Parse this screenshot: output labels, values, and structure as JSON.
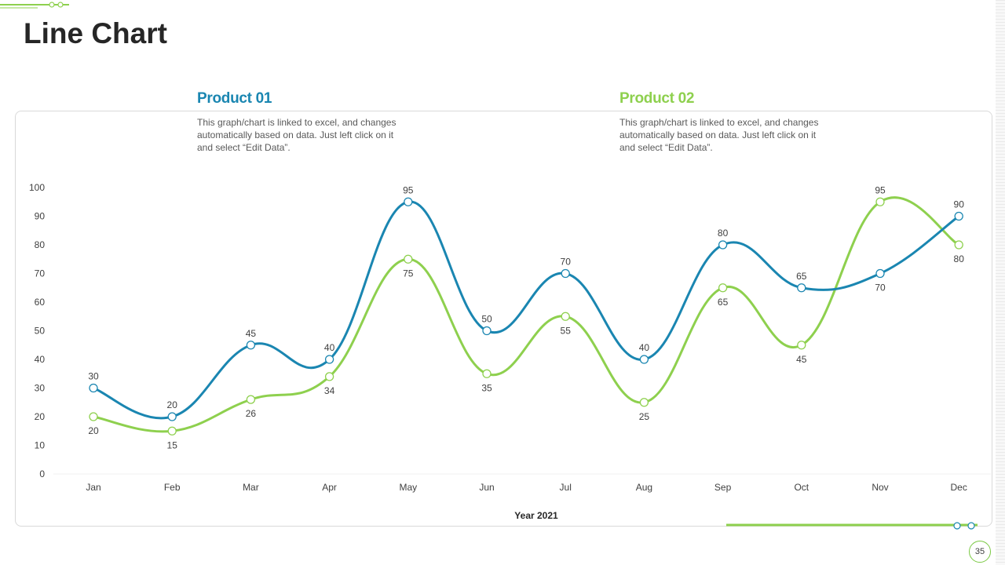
{
  "slide": {
    "title": "Line Chart",
    "page_number": "35"
  },
  "legend": [
    {
      "name": "Product 01",
      "color": "#1a86b1",
      "description": "This graph/chart is linked to excel, and changes automatically based on data. Just left click on it and select “Edit Data”."
    },
    {
      "name": "Product 02",
      "color": "#8ed04e",
      "description": "This graph/chart is linked to excel, and changes automatically based on data. Just left click on it and select “Edit Data”."
    }
  ],
  "chart_data": {
    "type": "line",
    "title": "",
    "xlabel": "Year 2021",
    "ylabel": "",
    "categories": [
      "Jan",
      "Feb",
      "Mar",
      "Apr",
      "May",
      "Jun",
      "Jul",
      "Aug",
      "Sep",
      "Oct",
      "Nov",
      "Dec"
    ],
    "ylim": [
      0,
      100
    ],
    "yticks": [
      0,
      10,
      20,
      30,
      40,
      50,
      60,
      70,
      80,
      90,
      100
    ],
    "grid": false,
    "series": [
      {
        "name": "Product 01",
        "color": "#1a86b1",
        "values": [
          30,
          20,
          45,
          40,
          95,
          50,
          70,
          40,
          80,
          65,
          70,
          90
        ]
      },
      {
        "name": "Product 02",
        "color": "#8ed04e",
        "values": [
          20,
          15,
          26,
          34,
          75,
          35,
          55,
          25,
          65,
          45,
          95,
          80
        ]
      }
    ]
  }
}
